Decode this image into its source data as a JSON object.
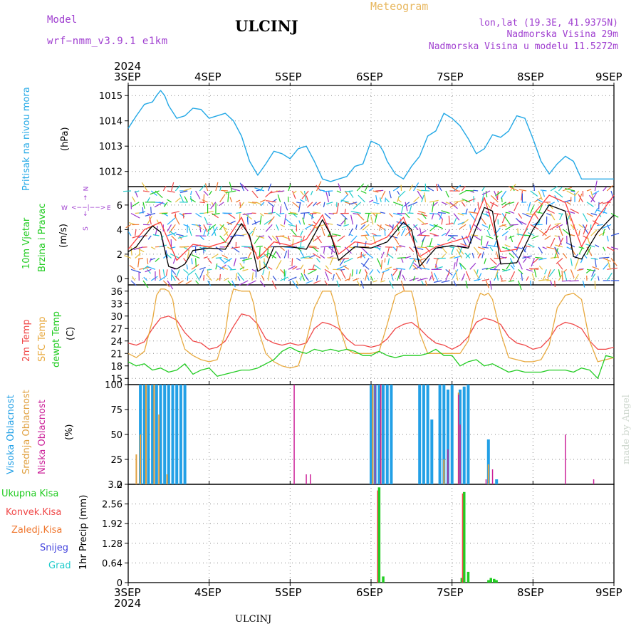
{
  "header": {
    "model_label": "Model",
    "model_name": "wrf−nmm_v3.9.1  e1km",
    "meteogram_label": "Meteogram",
    "station": "ULCINJ",
    "lonlat": "lon,lat (19.3E, 41.9375N)",
    "elevation": "Nadmorska Visina 29m",
    "model_elevation": "Nadmorska Visina u modelu 11.5272m"
  },
  "footer": {
    "station": "ULCINJ",
    "credit": "made by Angel"
  },
  "time_axis": {
    "year": "2024",
    "dates": [
      "3SEP",
      "4SEP",
      "5SEP",
      "6SEP",
      "7SEP",
      "8SEP",
      "9SEP"
    ]
  },
  "panel_labels": {
    "pressure": [
      "Pritisak na nivou mora"
    ],
    "pressure_unit": "(hPa)",
    "wind": [
      "10m Vjetar",
      "Brzina i Pravac"
    ],
    "wind_unit": "(m/s)",
    "wind_rose": {
      "n": "N",
      "s": "S",
      "w": "W",
      "e": "E"
    },
    "temp": [
      "2m Temp",
      "SFC Temp",
      "dewpt Temp"
    ],
    "temp_unit": "(C)",
    "cloud": [
      "Visoka Oblacnost",
      "Srednja Oblacnost",
      "Niska Oblacnost"
    ],
    "cloud_unit": "(%)",
    "precip": [
      "Ukupna Kisa",
      "Konvek.Kisa",
      "Zaledj.Kisa",
      "Snijeg",
      "Grad"
    ],
    "precip_unit": "1hr Precip (mm)"
  },
  "colors": {
    "pressure": "#22a8e6",
    "t2m": "#f04848",
    "sfc": "#e8aa40",
    "dew": "#22cc22",
    "wind_label": "#22cc22",
    "cloud_high": "#22a0e6",
    "cloud_mid": "#e0a040",
    "cloud_low": "#cc2299",
    "total": "#22cc22",
    "conv": "#f04848",
    "frz": "#f07830",
    "snow": "#4444dd",
    "hail": "#22cccc",
    "wind_speed": "#000000",
    "wind_gust": "#ff4040",
    "header_purple": "#a040d0",
    "header_orange": "#e8b860"
  },
  "chart_data": [
    {
      "type": "line",
      "panel": "pressure",
      "ylim": [
        1011.4,
        1015.4
      ],
      "yticks": [
        1012,
        1013,
        1014,
        1015
      ],
      "series": [
        {
          "name": "Pritisak na nivou mora",
          "x": [
            0,
            0.1,
            0.2,
            0.3,
            0.35,
            0.4,
            0.45,
            0.5,
            0.6,
            0.7,
            0.8,
            0.9,
            1.0,
            1.1,
            1.2,
            1.3,
            1.4,
            1.5,
            1.6,
            1.7,
            1.8,
            1.9,
            2.0,
            2.1,
            2.2,
            2.3,
            2.4,
            2.5,
            2.6,
            2.7,
            2.8,
            2.9,
            3.0,
            3.1,
            3.15,
            3.2,
            3.3,
            3.4,
            3.5,
            3.6,
            3.7,
            3.8,
            3.9,
            4.0,
            4.1,
            4.2,
            4.3,
            4.4,
            4.5,
            4.6,
            4.7,
            4.8,
            4.9,
            5.0,
            5.1,
            5.2,
            5.3,
            5.4,
            5.5,
            5.6,
            5.7,
            5.8,
            5.9,
            6.0
          ],
          "values": [
            1013.7,
            1014.2,
            1014.65,
            1014.75,
            1015.0,
            1015.2,
            1015.0,
            1014.6,
            1014.1,
            1014.2,
            1014.5,
            1014.45,
            1014.1,
            1014.2,
            1014.3,
            1014.0,
            1013.4,
            1012.4,
            1011.85,
            1012.3,
            1012.8,
            1012.7,
            1012.5,
            1012.9,
            1013.0,
            1012.4,
            1011.7,
            1011.6,
            1011.7,
            1011.8,
            1012.2,
            1012.3,
            1013.2,
            1013.05,
            1012.8,
            1012.4,
            1011.9,
            1011.7,
            1012.2,
            1012.6,
            1013.4,
            1013.6,
            1014.3,
            1014.1,
            1013.8,
            1013.3,
            1012.7,
            1012.9,
            1013.45,
            1013.35,
            1013.6,
            1014.2,
            1014.1,
            1013.3,
            1012.4,
            1011.9,
            1012.3,
            1012.6,
            1012.4,
            1011.7,
            1011.7,
            1011.7,
            1011.7,
            1011.7
          ]
        }
      ]
    },
    {
      "type": "line",
      "panel": "wind",
      "ylim": [
        -0.5,
        7.5
      ],
      "yticks": [
        0,
        2,
        4,
        6
      ],
      "series": [
        {
          "name": "speed",
          "x": [
            0,
            0.1,
            0.2,
            0.3,
            0.4,
            0.5,
            0.6,
            0.7,
            0.8,
            1.0,
            1.2,
            1.4,
            1.5,
            1.6,
            1.7,
            1.8,
            2.0,
            2.2,
            2.4,
            2.5,
            2.6,
            2.8,
            3.0,
            3.2,
            3.4,
            3.5,
            3.6,
            3.8,
            4.0,
            4.2,
            4.4,
            4.5,
            4.6,
            4.8,
            5.0,
            5.2,
            5.4,
            5.5,
            5.6,
            5.8,
            6.0
          ],
          "values": [
            2.2,
            2.6,
            3.5,
            4.3,
            3.8,
            1.0,
            0.8,
            1.2,
            2.3,
            2.5,
            2.4,
            4.5,
            3.5,
            0.6,
            1.0,
            2.6,
            2.6,
            2.4,
            4.8,
            3.6,
            1.5,
            2.6,
            2.5,
            3.0,
            4.6,
            4.0,
            1.0,
            2.5,
            2.7,
            2.5,
            5.8,
            5.5,
            1.2,
            1.3,
            4.0,
            6.0,
            5.5,
            1.8,
            1.6,
            3.8,
            5.2
          ]
        },
        {
          "name": "gust",
          "x": [
            0,
            0.2,
            0.4,
            0.6,
            0.8,
            1.0,
            1.2,
            1.4,
            1.6,
            1.8,
            2.0,
            2.2,
            2.4,
            2.6,
            2.8,
            3.0,
            3.2,
            3.4,
            3.6,
            3.8,
            4.0,
            4.2,
            4.4,
            4.6,
            4.8,
            5.0,
            5.2,
            5.4,
            5.6,
            5.8,
            6.0
          ],
          "values": [
            2.4,
            4.0,
            4.6,
            1.5,
            2.8,
            2.6,
            3.0,
            5.0,
            1.6,
            3.0,
            2.7,
            3.2,
            5.2,
            2.0,
            3.0,
            2.8,
            3.4,
            5.0,
            1.8,
            2.6,
            3.0,
            3.4,
            6.6,
            2.2,
            2.4,
            5.2,
            6.8,
            6.2,
            2.6,
            5.0,
            6.8
          ]
        }
      ]
    },
    {
      "type": "line",
      "panel": "temperature",
      "ylim": [
        13.5,
        37.5
      ],
      "yticks": [
        15,
        18,
        21,
        24,
        27,
        30,
        33,
        36
      ],
      "series": [
        {
          "name": "2m Temp",
          "x": [
            0,
            0.1,
            0.2,
            0.3,
            0.4,
            0.5,
            0.6,
            0.7,
            0.8,
            0.9,
            1.0,
            1.1,
            1.2,
            1.3,
            1.4,
            1.5,
            1.6,
            1.7,
            1.8,
            1.9,
            2.0,
            2.1,
            2.2,
            2.3,
            2.4,
            2.5,
            2.6,
            2.7,
            2.8,
            2.9,
            3.0,
            3.1,
            3.2,
            3.3,
            3.4,
            3.5,
            3.6,
            3.7,
            3.8,
            3.9,
            4.0,
            4.1,
            4.2,
            4.3,
            4.4,
            4.5,
            4.6,
            4.7,
            4.8,
            4.9,
            5.0,
            5.1,
            5.2,
            5.3,
            5.4,
            5.5,
            5.6,
            5.7,
            5.8,
            5.9,
            6.0
          ],
          "values": [
            23.5,
            23.0,
            23.8,
            27.0,
            29.5,
            30.0,
            29.0,
            26.0,
            24.0,
            23.5,
            22.0,
            22.5,
            24.0,
            27.5,
            30.5,
            30.0,
            28.0,
            24.5,
            23.5,
            23.0,
            23.5,
            23.0,
            23.5,
            27.0,
            28.5,
            28.0,
            27.0,
            24.5,
            23.0,
            23.0,
            22.5,
            23.0,
            24.5,
            27.0,
            28.0,
            28.5,
            27.0,
            25.0,
            23.5,
            23.0,
            22.0,
            23.0,
            25.0,
            28.5,
            29.5,
            29.0,
            28.0,
            25.0,
            23.5,
            23.0,
            22.0,
            22.5,
            24.5,
            27.5,
            28.5,
            28.0,
            27.0,
            24.0,
            22.0,
            22.0,
            22.5
          ]
        },
        {
          "name": "SFC Temp",
          "x": [
            0,
            0.1,
            0.2,
            0.3,
            0.35,
            0.4,
            0.45,
            0.5,
            0.55,
            0.6,
            0.7,
            0.8,
            0.9,
            1.0,
            1.1,
            1.2,
            1.25,
            1.3,
            1.4,
            1.5,
            1.55,
            1.6,
            1.7,
            1.8,
            1.9,
            2.0,
            2.1,
            2.2,
            2.3,
            2.4,
            2.45,
            2.5,
            2.55,
            2.6,
            2.7,
            2.8,
            2.9,
            3.0,
            3.1,
            3.2,
            3.3,
            3.4,
            3.5,
            3.55,
            3.6,
            3.7,
            3.8,
            3.9,
            4.0,
            4.1,
            4.2,
            4.3,
            4.35,
            4.4,
            4.45,
            4.5,
            4.6,
            4.7,
            4.8,
            4.9,
            5.0,
            5.1,
            5.2,
            5.3,
            5.4,
            5.5,
            5.6,
            5.7,
            5.8,
            5.9,
            6.0
          ],
          "values": [
            21.0,
            20.0,
            21.5,
            29.0,
            35.0,
            36.5,
            36.5,
            36.0,
            34.0,
            28.0,
            22.0,
            20.5,
            19.5,
            19.0,
            19.5,
            26.0,
            33.0,
            36.5,
            36.0,
            36.0,
            33.0,
            27.0,
            21.0,
            19.0,
            18.0,
            17.5,
            18.0,
            24.0,
            32.0,
            36.0,
            36.0,
            36.0,
            33.0,
            28.0,
            22.0,
            21.0,
            21.0,
            21.0,
            21.5,
            28.0,
            35.0,
            36.0,
            36.0,
            32.0,
            26.0,
            21.0,
            21.0,
            21.0,
            21.0,
            21.0,
            24.0,
            33.0,
            35.5,
            35.0,
            35.5,
            34.0,
            26.0,
            20.0,
            19.5,
            19.0,
            19.0,
            19.5,
            23.0,
            32.0,
            35.0,
            35.5,
            34.0,
            24.0,
            19.0,
            19.5,
            20.0
          ]
        },
        {
          "name": "dewpt Temp",
          "x": [
            0,
            0.1,
            0.2,
            0.3,
            0.4,
            0.5,
            0.6,
            0.7,
            0.8,
            0.9,
            1.0,
            1.1,
            1.2,
            1.3,
            1.4,
            1.5,
            1.6,
            1.7,
            1.8,
            1.9,
            2.0,
            2.1,
            2.2,
            2.3,
            2.4,
            2.5,
            2.6,
            2.7,
            2.8,
            2.9,
            3.0,
            3.1,
            3.2,
            3.3,
            3.4,
            3.5,
            3.6,
            3.7,
            3.8,
            3.9,
            4.0,
            4.1,
            4.2,
            4.3,
            4.4,
            4.5,
            4.6,
            4.7,
            4.8,
            4.9,
            5.0,
            5.1,
            5.2,
            5.3,
            5.4,
            5.5,
            5.6,
            5.7,
            5.8,
            5.9,
            6.0
          ],
          "values": [
            19.0,
            18.0,
            18.5,
            17.0,
            17.5,
            16.5,
            17.0,
            18.5,
            16.0,
            17.0,
            17.5,
            15.5,
            16.0,
            16.5,
            17.0,
            17.0,
            17.5,
            18.5,
            19.5,
            21.5,
            22.5,
            21.5,
            21.0,
            22.0,
            21.5,
            22.0,
            21.5,
            22.0,
            21.5,
            20.5,
            20.5,
            21.5,
            20.5,
            20.0,
            20.5,
            20.5,
            20.5,
            21.0,
            22.0,
            20.5,
            20.5,
            18.0,
            19.0,
            19.5,
            18.0,
            18.5,
            17.5,
            16.5,
            17.0,
            16.5,
            16.5,
            16.5,
            17.0,
            17.0,
            17.0,
            16.5,
            17.5,
            17.0,
            15.0,
            20.5,
            20.0
          ]
        }
      ]
    },
    {
      "type": "bar",
      "panel": "cloud",
      "ylim": [
        0,
        100
      ],
      "yticks": [
        0,
        25,
        50,
        75,
        100
      ],
      "series": [
        {
          "name": "Visoka Oblacnost",
          "x": [
            0.15,
            0.2,
            0.25,
            0.3,
            0.35,
            0.4,
            0.45,
            0.5,
            0.55,
            0.6,
            0.65,
            0.7,
            3.0,
            3.05,
            3.1,
            3.15,
            3.2,
            3.25,
            3.6,
            3.65,
            3.7,
            3.75,
            3.85,
            3.9,
            3.95,
            4.0,
            4.1,
            4.15,
            4.2,
            4.45,
            4.55
          ],
          "values": [
            100,
            100,
            100,
            100,
            100,
            100,
            100,
            100,
            100,
            100,
            100,
            100,
            100,
            100,
            100,
            100,
            100,
            100,
            100,
            100,
            100,
            65,
            100,
            100,
            95,
            100,
            95,
            98,
            100,
            45,
            5
          ]
        },
        {
          "name": "Srednja Oblacnost",
          "x": [
            0.1,
            0.15,
            0.22,
            0.32,
            0.38,
            0.48,
            3.02,
            3.12,
            3.9,
            4.08,
            4.45
          ],
          "values": [
            30,
            50,
            100,
            100,
            70,
            10,
            100,
            100,
            25,
            92,
            20
          ]
        },
        {
          "name": "Niska Oblacnost",
          "x": [
            2.05,
            2.2,
            2.25,
            3.05,
            3.12,
            3.95,
            4.08,
            4.1,
            4.42,
            4.5,
            5.4,
            5.75
          ],
          "values": [
            100,
            10,
            10,
            100,
            100,
            35,
            90,
            60,
            5,
            15,
            50,
            5
          ]
        }
      ]
    },
    {
      "type": "bar",
      "panel": "precip",
      "ylim": [
        0,
        3.2
      ],
      "yticks": [
        0,
        0.64,
        1.28,
        1.92,
        2.56,
        3.2
      ],
      "series": [
        {
          "name": "Ukupna Kisa",
          "x": [
            3.1,
            3.15,
            4.12,
            4.15,
            4.2,
            4.45,
            4.48,
            4.52,
            4.55
          ],
          "values": [
            3.1,
            0.2,
            0.15,
            2.95,
            0.35,
            0.08,
            0.15,
            0.12,
            0.08
          ]
        },
        {
          "name": "Konvek.Kisa",
          "x": [
            3.08,
            4.13
          ],
          "values": [
            3.0,
            2.9
          ]
        }
      ]
    }
  ]
}
